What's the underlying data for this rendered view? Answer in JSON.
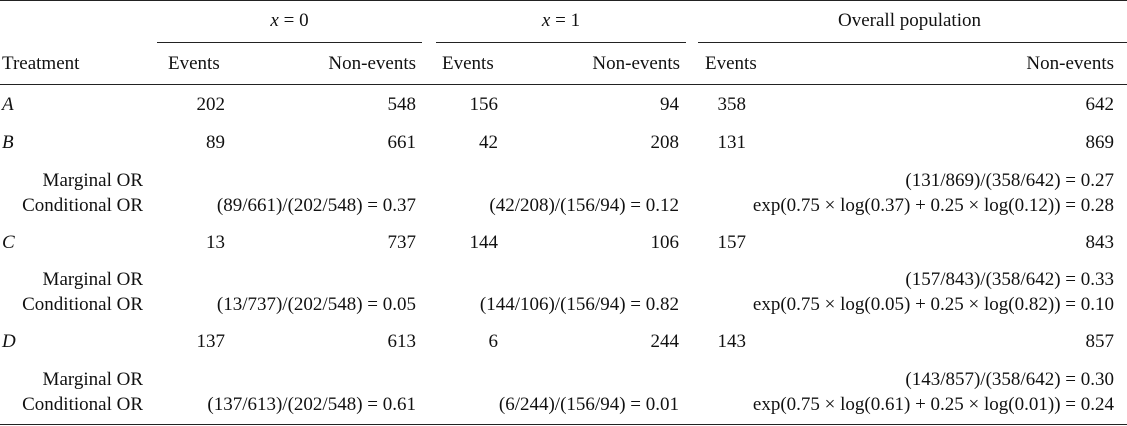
{
  "header": {
    "group1_var": "x",
    "group1_rest": " = 0",
    "group2_var": "x",
    "group2_rest": " = 1",
    "group3": "Overall population",
    "treatment": "Treatment",
    "events": "Events",
    "nonevents": "Non-events"
  },
  "rows": {
    "A": {
      "label": "A",
      "e0": "202",
      "n0": "548",
      "e1": "156",
      "n1": "94",
      "eo": "358",
      "no": "642"
    },
    "B": {
      "label": "B",
      "e0": "89",
      "n0": "661",
      "e1": "42",
      "n1": "208",
      "eo": "131",
      "no": "869",
      "marginal_label": "Marginal OR",
      "conditional_label": "Conditional OR",
      "marginal": "(131/869)/(358/642) = 0.27",
      "cond0": "(89/661)/(202/548) = 0.37",
      "cond1": "(42/208)/(156/94) = 0.12",
      "condo": "exp(0.75 × log(0.37) + 0.25 × log(0.12)) = 0.28"
    },
    "C": {
      "label": "C",
      "e0": "13",
      "n0": "737",
      "e1": "144",
      "n1": "106",
      "eo": "157",
      "no": "843",
      "marginal_label": "Marginal OR",
      "conditional_label": "Conditional OR",
      "marginal": "(157/843)/(358/642) = 0.33",
      "cond0": "(13/737)/(202/548) = 0.05",
      "cond1": "(144/106)/(156/94) = 0.82",
      "condo": "exp(0.75 × log(0.05) + 0.25 × log(0.82)) = 0.10"
    },
    "D": {
      "label": "D",
      "e0": "137",
      "n0": "613",
      "e1": "6",
      "n1": "244",
      "eo": "143",
      "no": "857",
      "marginal_label": "Marginal OR",
      "conditional_label": "Conditional OR",
      "marginal": "(143/857)/(358/642) = 0.30",
      "cond0": "(137/613)/(202/548) = 0.61",
      "cond1": "(6/244)/(156/94) = 0.01",
      "condo": "exp(0.75 × log(0.61) + 0.25 × log(0.01)) = 0.24"
    }
  }
}
